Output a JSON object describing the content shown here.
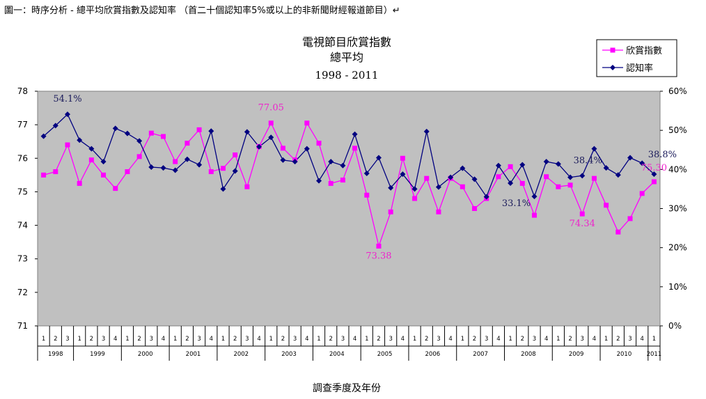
{
  "caption": "圖一：時序分析 - 總平均欣賞指數及認知率 （首二十個認知率5%或以上的非新聞財經報道節目）↵",
  "chart_data": {
    "type": "line",
    "title": "電視節目欣賞指數",
    "subtitle": "總平均",
    "years_label": "1998 - 2011",
    "xlabel": "調查季度及年份",
    "ylabel": "",
    "y2label": "",
    "ylim": [
      71,
      78
    ],
    "y2lim": [
      0,
      60
    ],
    "y_ticks": [
      "71",
      "72",
      "73",
      "74",
      "75",
      "76",
      "77",
      "78"
    ],
    "y2_ticks": [
      "0%",
      "10%",
      "20%",
      "30%",
      "40%",
      "50%",
      "60%"
    ],
    "grid": false,
    "legend_position": "top-right",
    "years": [
      "1998",
      "1999",
      "2000",
      "2001",
      "2002",
      "2003",
      "2004",
      "2005",
      "2006",
      "2007",
      "2008",
      "2009",
      "2010",
      "2011"
    ],
    "quarters_per_year": [
      3,
      4,
      4,
      4,
      4,
      4,
      4,
      4,
      4,
      4,
      4,
      4,
      4,
      1
    ],
    "series": [
      {
        "name": "欣賞指數",
        "axis": "left",
        "color": "#ff00ff",
        "marker": "square",
        "values": [
          75.5,
          75.6,
          76.4,
          75.25,
          75.95,
          75.5,
          75.1,
          75.6,
          76.05,
          76.75,
          76.65,
          75.9,
          76.45,
          76.85,
          75.6,
          75.7,
          76.1,
          75.15,
          76.35,
          77.05,
          76.3,
          75.95,
          77.05,
          76.45,
          75.25,
          75.35,
          76.3,
          74.9,
          73.38,
          74.4,
          76.0,
          74.8,
          75.4,
          74.4,
          75.4,
          75.15,
          74.5,
          74.8,
          75.45,
          75.75,
          75.25,
          74.3,
          75.45,
          75.15,
          75.2,
          74.34,
          75.4,
          74.6,
          73.8,
          74.2,
          74.95,
          75.3
        ]
      },
      {
        "name": "認知率",
        "axis": "right",
        "color": "#000080",
        "marker": "diamond",
        "values": [
          48.5,
          51.2,
          54.1,
          47.5,
          45.3,
          42.0,
          50.5,
          49.2,
          47.3,
          40.6,
          40.4,
          39.8,
          42.6,
          41.2,
          49.8,
          35.0,
          39.6,
          49.6,
          45.8,
          48.2,
          42.4,
          42.0,
          45.3,
          37.1,
          42.0,
          41.0,
          49.0,
          39.0,
          43.0,
          35.3,
          38.8,
          35.0,
          49.7,
          35.5,
          38.0,
          40.3,
          37.5,
          33.0,
          41.0,
          36.5,
          41.2,
          33.1,
          42.0,
          41.4,
          38.0,
          38.4,
          45.3,
          40.4,
          38.6,
          43.0,
          41.6,
          38.8
        ]
      }
    ],
    "annotations": [
      {
        "text": "54.1%",
        "series": 1,
        "index": 2
      },
      {
        "text": "77.05",
        "series": 0,
        "index": 19
      },
      {
        "text": "73.38",
        "series": 0,
        "index": 28
      },
      {
        "text": "33.1%",
        "series": 1,
        "index": 41
      },
      {
        "text": "38.4%",
        "series": 1,
        "index": 45
      },
      {
        "text": "74.34",
        "series": 0,
        "index": 45
      },
      {
        "text": "75.30",
        "series": 0,
        "index": 51
      },
      {
        "text": "38.8%",
        "series": 1,
        "index": 51
      }
    ]
  }
}
